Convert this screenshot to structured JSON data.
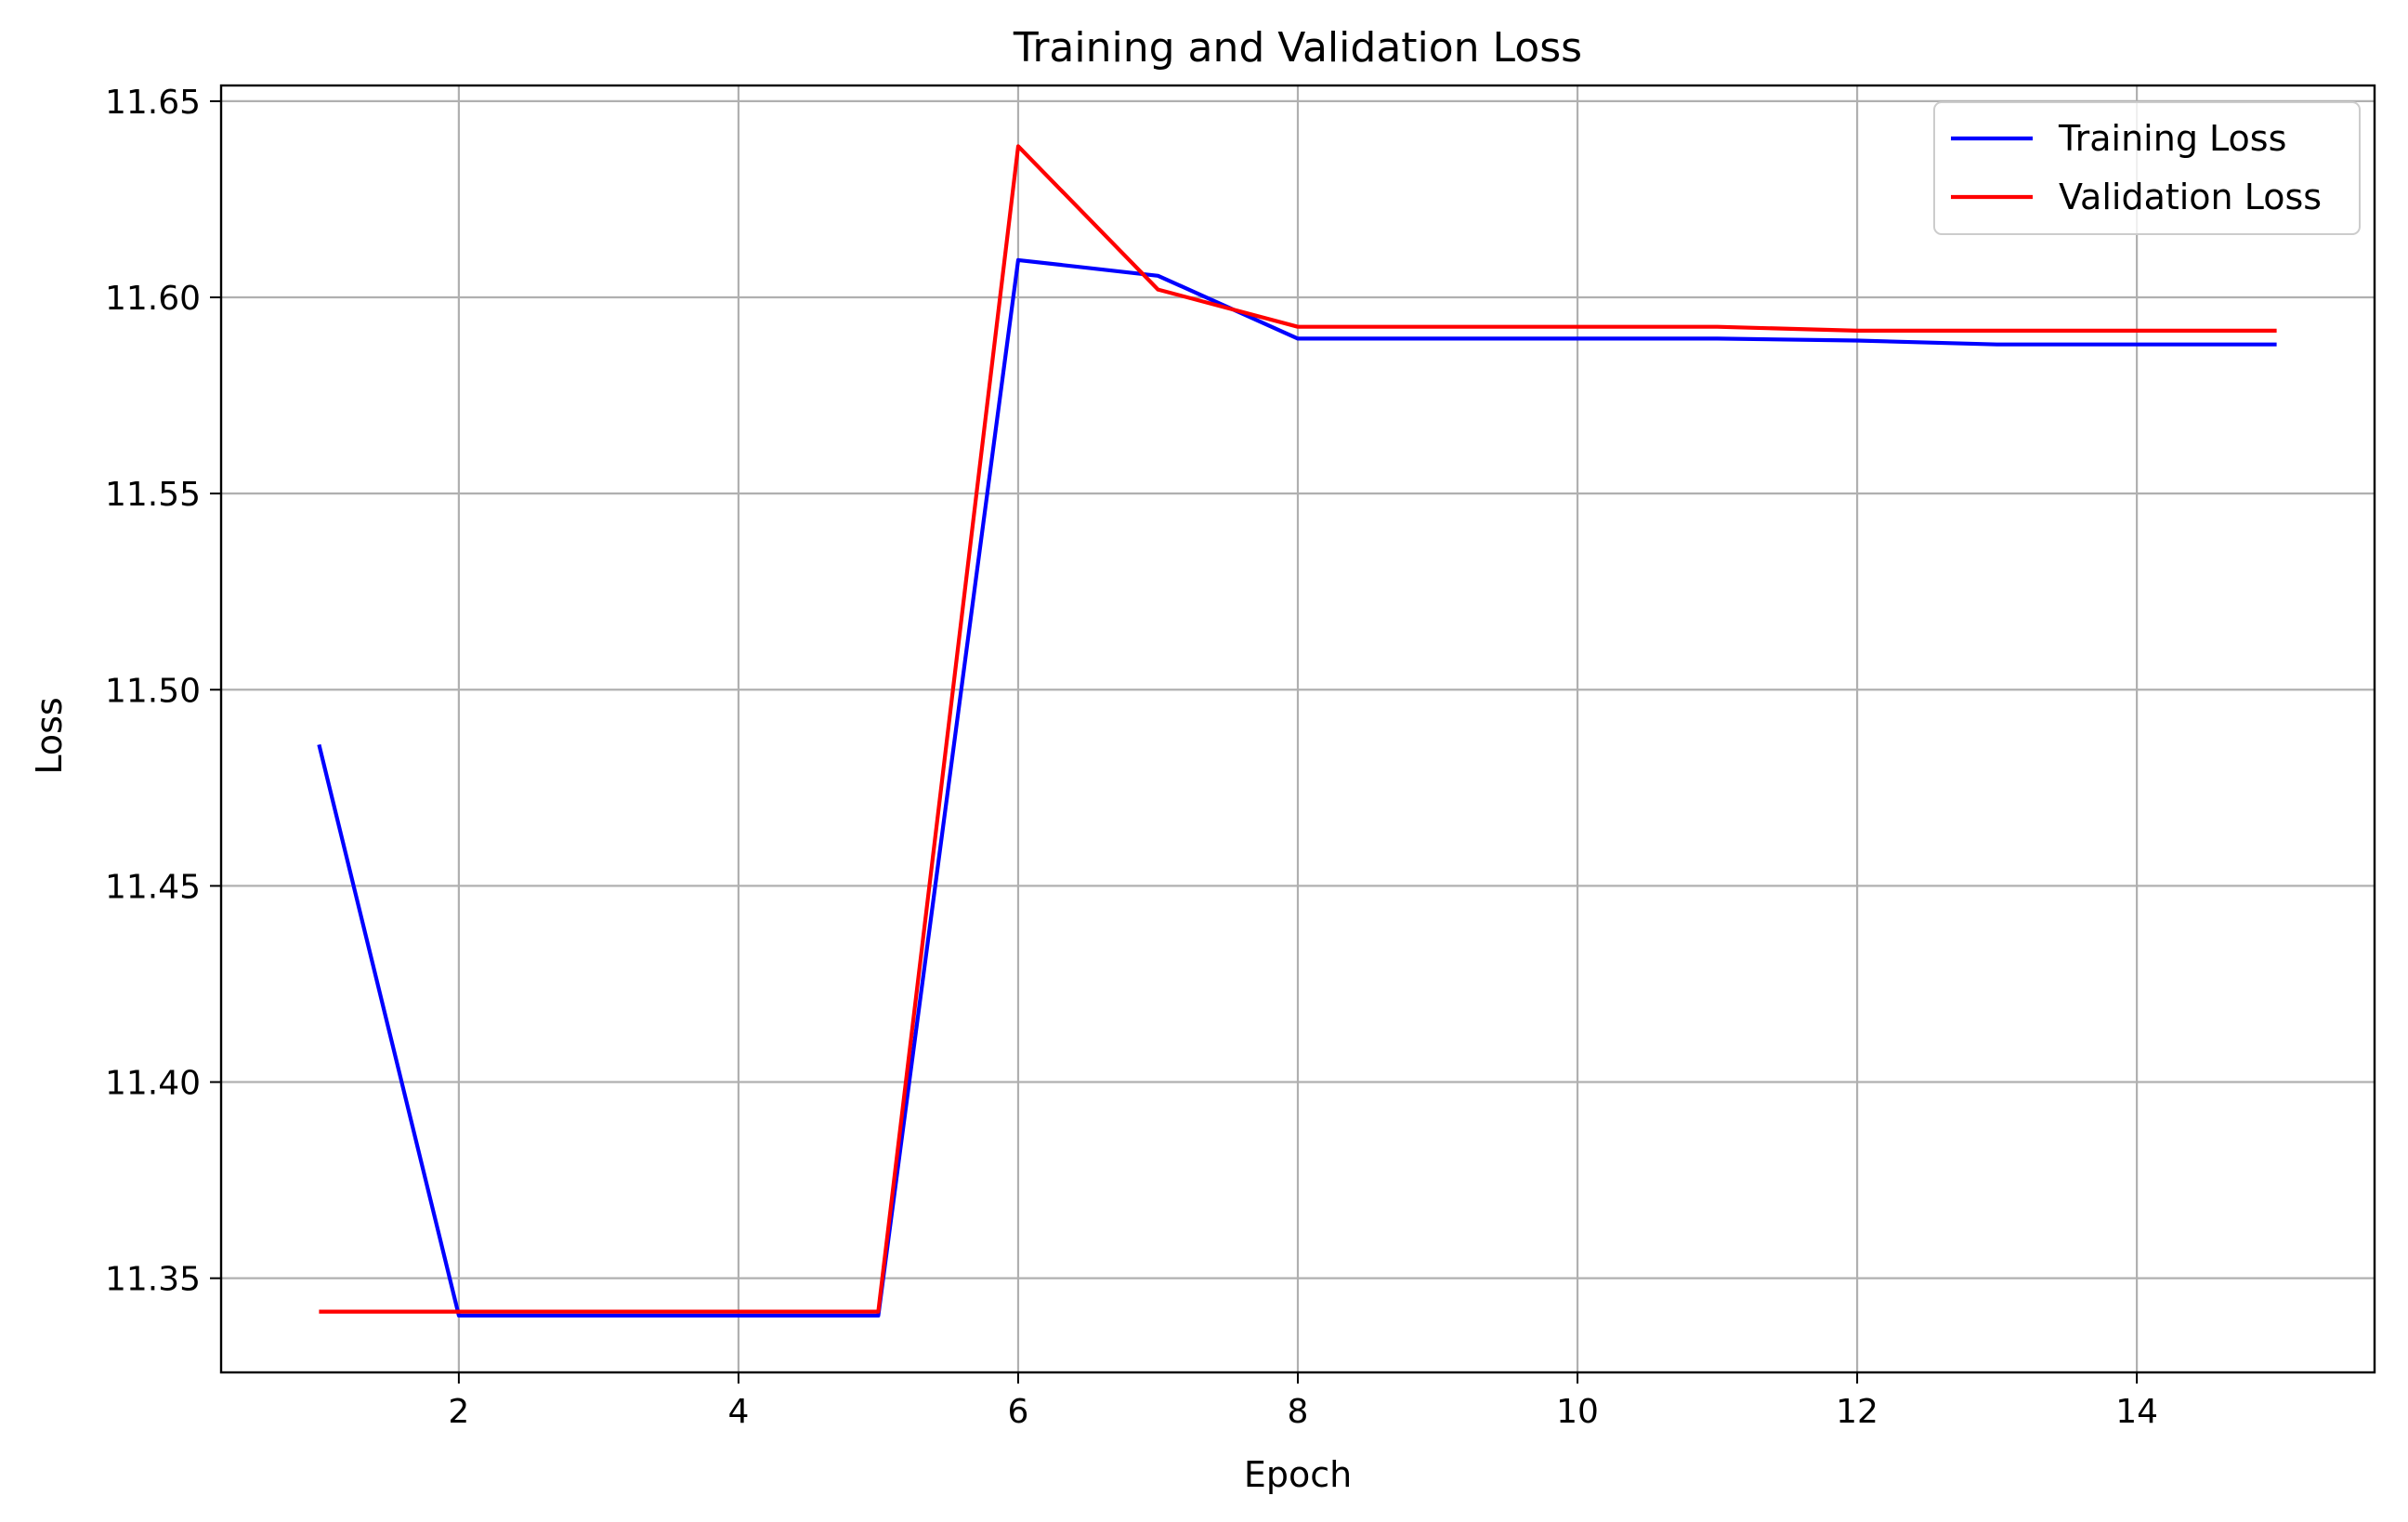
{
  "chart_data": {
    "type": "line",
    "title": "Training and Validation Loss",
    "xlabel": "Epoch",
    "ylabel": "Loss",
    "x": [
      1,
      2,
      3,
      4,
      5,
      6,
      7,
      8,
      9,
      10,
      11,
      12,
      13,
      14,
      15
    ],
    "xlim": [
      0.3,
      15.7
    ],
    "ylim": [
      11.326,
      11.654
    ],
    "xticks": [
      2,
      4,
      6,
      8,
      10,
      12,
      14
    ],
    "yticks": [
      11.35,
      11.4,
      11.45,
      11.5,
      11.55,
      11.6,
      11.65
    ],
    "ytick_labels": [
      "11.35",
      "11.40",
      "11.45",
      "11.50",
      "11.55",
      "11.60",
      "11.65"
    ],
    "grid": true,
    "legend_position": "top-right",
    "series": [
      {
        "name": "Training Loss",
        "color": "#0000ff",
        "values": [
          11.486,
          11.3405,
          11.3405,
          11.3405,
          11.3405,
          11.6095,
          11.6055,
          11.5895,
          11.5895,
          11.5895,
          11.5895,
          11.589,
          11.588,
          11.588,
          11.588
        ]
      },
      {
        "name": "Validation Loss",
        "color": "#ff0000",
        "values": [
          11.3415,
          11.3415,
          11.3415,
          11.3415,
          11.3415,
          11.6385,
          11.602,
          11.5925,
          11.5925,
          11.5925,
          11.5925,
          11.5915,
          11.5915,
          11.5915,
          11.5915
        ]
      }
    ]
  }
}
